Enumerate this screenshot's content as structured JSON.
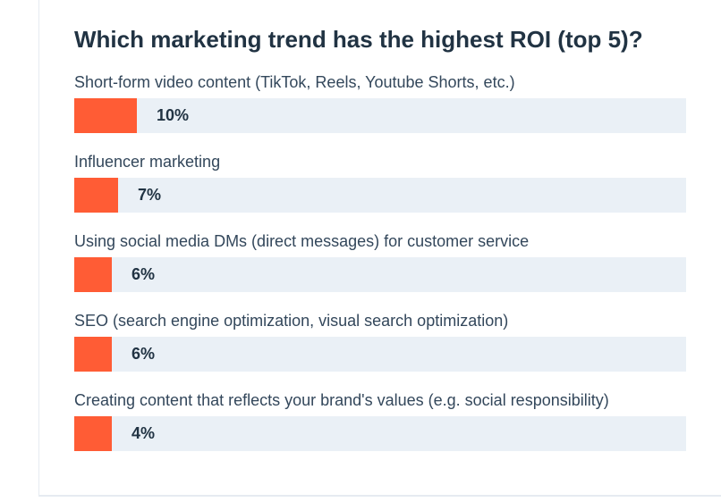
{
  "chart_data": {
    "type": "bar",
    "orientation": "horizontal",
    "title": "Which marketing trend has the highest ROI (top 5)?",
    "categories": [
      "Short-form video content (TikTok, Reels, Youtube Shorts, etc.)",
      "Influencer marketing",
      "Using social media DMs (direct messages) for customer service",
      "SEO (search engine optimization, visual search optimization)",
      "Creating content that reflects your brand's values (e.g. social responsibility)"
    ],
    "values": [
      10,
      7,
      6,
      6,
      4
    ],
    "value_labels": [
      "10%",
      "7%",
      "6%",
      "6%",
      "4%"
    ],
    "unit": "%",
    "xlim": [
      0,
      100
    ],
    "grid": false,
    "legend": "none",
    "colors": {
      "bar": "#ff5c35",
      "track": "#eaf0f6",
      "text": "#33475b",
      "title": "#213343"
    }
  }
}
